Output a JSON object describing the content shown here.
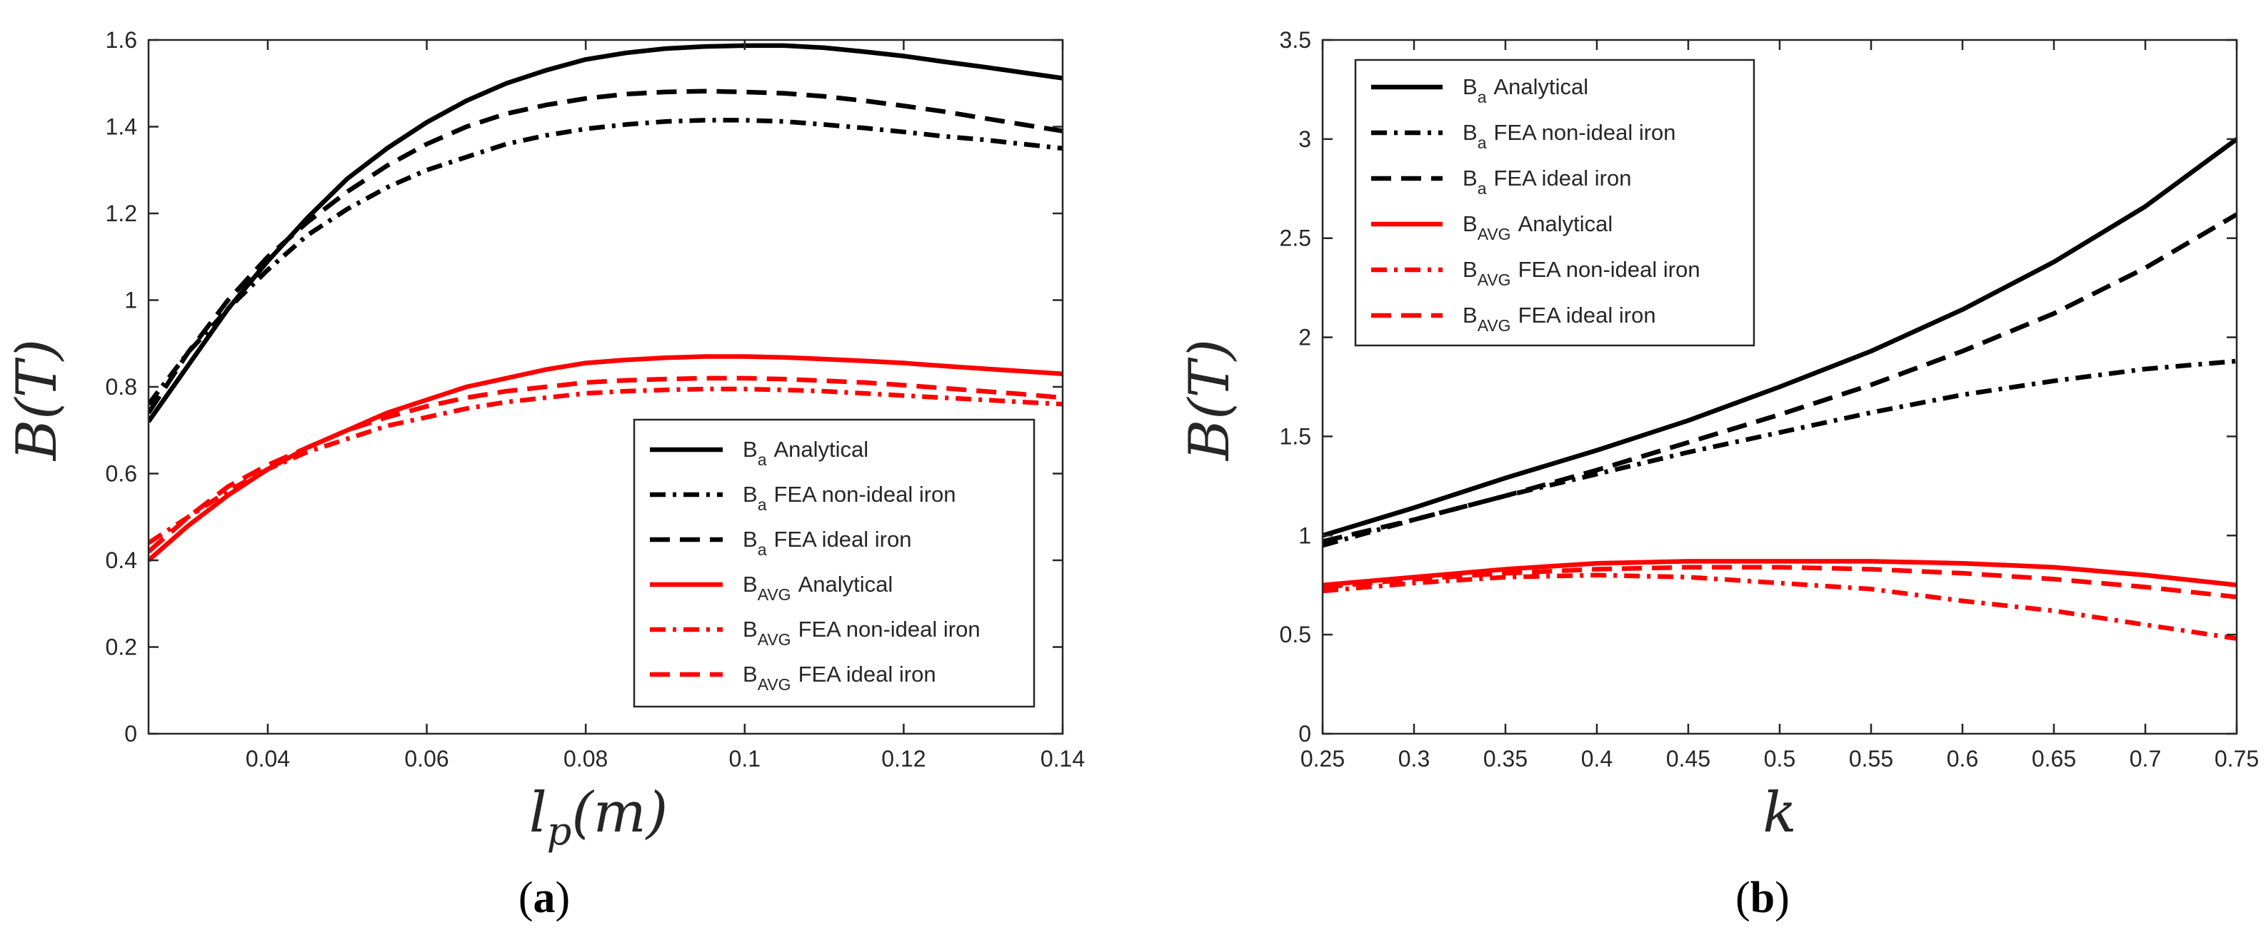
{
  "chart_data": [
    {
      "type": "line",
      "panel_label": "(a)",
      "xlabel": "l_p(m)",
      "ylabel": "B(T)",
      "xlim": [
        0.025,
        0.14
      ],
      "ylim": [
        0,
        1.6
      ],
      "xticks": [
        0.04,
        0.06,
        0.08,
        0.1,
        0.12,
        0.14
      ],
      "xtick_labels": [
        "0.04",
        "0.06",
        "0.08",
        "0.1",
        "0.12",
        "0.14"
      ],
      "yticks": [
        0,
        0.2,
        0.4,
        0.6,
        0.8,
        1,
        1.2,
        1.4,
        1.6
      ],
      "ytick_labels": [
        "0",
        "0.2",
        "0.4",
        "0.6",
        "0.8",
        "1",
        "1.2",
        "1.4",
        "1.6"
      ],
      "grid": false,
      "legend_position": "bottom-right",
      "series": [
        {
          "name": "Ba Analytical",
          "sub": "a",
          "rest": "Analytical",
          "color": "#000000",
          "style": "solid",
          "x": [
            0.025,
            0.03,
            0.035,
            0.04,
            0.045,
            0.05,
            0.055,
            0.06,
            0.065,
            0.07,
            0.075,
            0.08,
            0.085,
            0.09,
            0.095,
            0.1,
            0.105,
            0.11,
            0.115,
            0.12,
            0.125,
            0.13,
            0.135,
            0.14
          ],
          "y": [
            0.72,
            0.85,
            0.98,
            1.09,
            1.19,
            1.28,
            1.35,
            1.41,
            1.46,
            1.5,
            1.53,
            1.555,
            1.57,
            1.58,
            1.585,
            1.587,
            1.587,
            1.582,
            1.573,
            1.563,
            1.55,
            1.538,
            1.525,
            1.512
          ]
        },
        {
          "name": "Ba FEA non-ideal iron",
          "sub": "a",
          "rest": "FEA non-ideal iron",
          "color": "#000000",
          "style": "dashdot",
          "x": [
            0.025,
            0.03,
            0.035,
            0.04,
            0.045,
            0.05,
            0.055,
            0.06,
            0.065,
            0.07,
            0.075,
            0.08,
            0.085,
            0.09,
            0.095,
            0.1,
            0.105,
            0.11,
            0.115,
            0.12,
            0.125,
            0.13,
            0.135,
            0.14
          ],
          "y": [
            0.76,
            0.88,
            0.98,
            1.07,
            1.15,
            1.21,
            1.26,
            1.3,
            1.33,
            1.36,
            1.38,
            1.395,
            1.405,
            1.412,
            1.415,
            1.415,
            1.412,
            1.405,
            1.397,
            1.388,
            1.378,
            1.37,
            1.36,
            1.35
          ]
        },
        {
          "name": "Ba FEA ideal iron",
          "sub": "a",
          "rest": "FEA ideal iron",
          "color": "#000000",
          "style": "dashed",
          "x": [
            0.025,
            0.03,
            0.035,
            0.04,
            0.045,
            0.05,
            0.055,
            0.06,
            0.065,
            0.07,
            0.075,
            0.08,
            0.085,
            0.09,
            0.095,
            0.1,
            0.105,
            0.11,
            0.115,
            0.12,
            0.125,
            0.13,
            0.135,
            0.14
          ],
          "y": [
            0.74,
            0.88,
            1.0,
            1.1,
            1.18,
            1.25,
            1.31,
            1.36,
            1.4,
            1.43,
            1.45,
            1.465,
            1.475,
            1.48,
            1.482,
            1.48,
            1.477,
            1.47,
            1.46,
            1.448,
            1.435,
            1.42,
            1.405,
            1.39
          ]
        },
        {
          "name": "BAVG Analytical",
          "sub": "AVG",
          "rest": "Analytical",
          "color": "#ff0000",
          "style": "solid",
          "x": [
            0.025,
            0.03,
            0.035,
            0.04,
            0.045,
            0.05,
            0.055,
            0.06,
            0.065,
            0.07,
            0.075,
            0.08,
            0.085,
            0.09,
            0.095,
            0.1,
            0.105,
            0.11,
            0.115,
            0.12,
            0.125,
            0.13,
            0.135,
            0.14
          ],
          "y": [
            0.4,
            0.48,
            0.55,
            0.61,
            0.66,
            0.7,
            0.74,
            0.77,
            0.8,
            0.82,
            0.84,
            0.855,
            0.862,
            0.867,
            0.87,
            0.87,
            0.868,
            0.864,
            0.86,
            0.855,
            0.848,
            0.842,
            0.836,
            0.83
          ]
        },
        {
          "name": "BAVG FEA non-ideal iron",
          "sub": "AVG",
          "rest": "FEA non-ideal iron",
          "color": "#ff0000",
          "style": "dashdot",
          "x": [
            0.025,
            0.03,
            0.035,
            0.04,
            0.045,
            0.05,
            0.055,
            0.06,
            0.065,
            0.07,
            0.075,
            0.08,
            0.085,
            0.09,
            0.095,
            0.1,
            0.105,
            0.11,
            0.115,
            0.12,
            0.125,
            0.13,
            0.135,
            0.14
          ],
          "y": [
            0.44,
            0.5,
            0.56,
            0.61,
            0.65,
            0.68,
            0.71,
            0.73,
            0.75,
            0.765,
            0.775,
            0.785,
            0.79,
            0.793,
            0.795,
            0.795,
            0.793,
            0.79,
            0.785,
            0.78,
            0.775,
            0.77,
            0.765,
            0.76
          ]
        },
        {
          "name": "BAVG FEA ideal iron",
          "sub": "AVG",
          "rest": "FEA ideal iron",
          "color": "#ff0000",
          "style": "dashed",
          "x": [
            0.025,
            0.03,
            0.035,
            0.04,
            0.045,
            0.05,
            0.055,
            0.06,
            0.065,
            0.07,
            0.075,
            0.08,
            0.085,
            0.09,
            0.095,
            0.1,
            0.105,
            0.11,
            0.115,
            0.12,
            0.125,
            0.13,
            0.135,
            0.14
          ],
          "y": [
            0.42,
            0.5,
            0.57,
            0.62,
            0.66,
            0.7,
            0.73,
            0.755,
            0.775,
            0.79,
            0.8,
            0.81,
            0.815,
            0.818,
            0.82,
            0.82,
            0.818,
            0.814,
            0.81,
            0.804,
            0.797,
            0.79,
            0.783,
            0.775
          ]
        }
      ]
    },
    {
      "type": "line",
      "panel_label": "(b)",
      "xlabel": "k",
      "ylabel": "B(T)",
      "xlim": [
        0.25,
        0.75
      ],
      "ylim": [
        0,
        3.5
      ],
      "xticks": [
        0.25,
        0.3,
        0.35,
        0.4,
        0.45,
        0.5,
        0.55,
        0.6,
        0.65,
        0.7,
        0.75
      ],
      "xtick_labels": [
        "0.25",
        "0.3",
        "0.35",
        "0.4",
        "0.45",
        "0.5",
        "0.55",
        "0.6",
        "0.65",
        "0.7",
        "0.75"
      ],
      "yticks": [
        0,
        0.5,
        1,
        1.5,
        2,
        2.5,
        3,
        3.5
      ],
      "ytick_labels": [
        "0",
        "0.5",
        "1",
        "1.5",
        "2",
        "2.5",
        "3",
        "3.5"
      ],
      "grid": false,
      "legend_position": "top-left",
      "series": [
        {
          "name": "Ba Analytical",
          "sub": "a",
          "rest": "Analytical",
          "color": "#000000",
          "style": "solid",
          "x": [
            0.25,
            0.3,
            0.35,
            0.4,
            0.45,
            0.5,
            0.55,
            0.6,
            0.65,
            0.7,
            0.75
          ],
          "y": [
            1.0,
            1.14,
            1.29,
            1.43,
            1.58,
            1.75,
            1.93,
            2.14,
            2.38,
            2.66,
            3.0
          ]
        },
        {
          "name": "Ba FEA non-ideal iron",
          "sub": "a",
          "rest": "FEA non-ideal iron",
          "color": "#000000",
          "style": "dashdot",
          "x": [
            0.25,
            0.3,
            0.35,
            0.4,
            0.45,
            0.5,
            0.55,
            0.6,
            0.65,
            0.7,
            0.75
          ],
          "y": [
            0.95,
            1.08,
            1.2,
            1.31,
            1.42,
            1.52,
            1.62,
            1.71,
            1.78,
            1.84,
            1.88
          ]
        },
        {
          "name": "Ba FEA ideal iron",
          "sub": "a",
          "rest": "FEA ideal iron",
          "color": "#000000",
          "style": "dashed",
          "x": [
            0.25,
            0.3,
            0.35,
            0.4,
            0.45,
            0.5,
            0.55,
            0.6,
            0.65,
            0.7,
            0.75
          ],
          "y": [
            0.97,
            1.08,
            1.2,
            1.33,
            1.47,
            1.61,
            1.76,
            1.93,
            2.12,
            2.35,
            2.62
          ]
        },
        {
          "name": "BAVG Analytical",
          "sub": "AVG",
          "rest": "Analytical",
          "color": "#ff0000",
          "style": "solid",
          "x": [
            0.25,
            0.3,
            0.35,
            0.4,
            0.45,
            0.5,
            0.55,
            0.6,
            0.65,
            0.7,
            0.75
          ],
          "y": [
            0.75,
            0.79,
            0.83,
            0.86,
            0.87,
            0.87,
            0.87,
            0.86,
            0.84,
            0.8,
            0.75
          ]
        },
        {
          "name": "BAVG FEA non-ideal iron",
          "sub": "AVG",
          "rest": "FEA non-ideal iron",
          "color": "#ff0000",
          "style": "dashdot",
          "x": [
            0.25,
            0.3,
            0.35,
            0.4,
            0.45,
            0.5,
            0.55,
            0.6,
            0.65,
            0.7,
            0.75
          ],
          "y": [
            0.72,
            0.76,
            0.79,
            0.8,
            0.79,
            0.76,
            0.73,
            0.67,
            0.62,
            0.55,
            0.48
          ]
        },
        {
          "name": "BAVG FEA ideal iron",
          "sub": "AVG",
          "rest": "FEA ideal iron",
          "color": "#ff0000",
          "style": "dashed",
          "x": [
            0.25,
            0.3,
            0.35,
            0.4,
            0.45,
            0.5,
            0.55,
            0.6,
            0.65,
            0.7,
            0.75
          ],
          "y": [
            0.74,
            0.78,
            0.81,
            0.83,
            0.84,
            0.84,
            0.83,
            0.81,
            0.78,
            0.74,
            0.69
          ]
        }
      ]
    }
  ]
}
